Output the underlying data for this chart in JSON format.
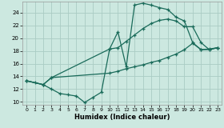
{
  "xlabel": "Humidex (Indice chaleur)",
  "background_color": "#cce8e0",
  "grid_color": "#aaccc4",
  "line_color": "#1a6b5a",
  "xlim": [
    -0.5,
    23.5
  ],
  "ylim": [
    9.5,
    25.8
  ],
  "xticks": [
    0,
    1,
    2,
    3,
    4,
    5,
    6,
    7,
    8,
    9,
    10,
    11,
    12,
    13,
    14,
    15,
    16,
    17,
    18,
    19,
    20,
    21,
    22,
    23
  ],
  "yticks": [
    10,
    12,
    14,
    16,
    18,
    20,
    22,
    24
  ],
  "line1_x": [
    0,
    1,
    2,
    3,
    4,
    5,
    6,
    7,
    8,
    9,
    10,
    11,
    12,
    13,
    14,
    15,
    16,
    17,
    18,
    19,
    20,
    21,
    22,
    23
  ],
  "line1_y": [
    13.3,
    13.0,
    12.7,
    12.0,
    11.3,
    11.1,
    10.9,
    9.9,
    10.7,
    11.5,
    18.3,
    21.0,
    15.5,
    25.2,
    25.5,
    25.2,
    24.8,
    24.5,
    23.3,
    22.7,
    19.3,
    18.2,
    18.3,
    18.5
  ],
  "line2_x": [
    0,
    2,
    3,
    10,
    11,
    12,
    13,
    14,
    15,
    16,
    17,
    18,
    19,
    20,
    21,
    22,
    23
  ],
  "line2_y": [
    13.3,
    12.7,
    13.8,
    18.3,
    18.5,
    19.5,
    20.5,
    21.5,
    22.3,
    22.8,
    23.0,
    22.7,
    21.8,
    21.8,
    19.3,
    18.2,
    18.5
  ],
  "line3_x": [
    0,
    2,
    3,
    10,
    11,
    12,
    13,
    14,
    15,
    16,
    17,
    18,
    19,
    20,
    21,
    22,
    23
  ],
  "line3_y": [
    13.3,
    12.7,
    13.8,
    14.5,
    14.8,
    15.2,
    15.5,
    15.8,
    16.2,
    16.5,
    17.0,
    17.5,
    18.2,
    19.2,
    18.2,
    18.2,
    18.5
  ]
}
